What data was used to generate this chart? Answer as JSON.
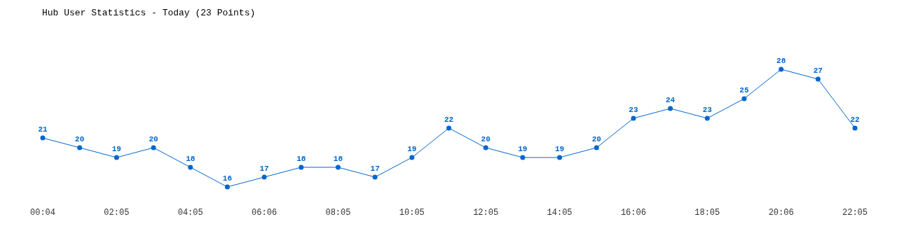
{
  "chart_data": {
    "type": "line",
    "title": "Hub User Statistics - Today (23 Points)",
    "categories": [
      "00:04",
      null,
      "02:05",
      null,
      "04:05",
      null,
      "06:06",
      null,
      "08:05",
      null,
      "10:05",
      null,
      "12:05",
      null,
      "14:05",
      null,
      "16:06",
      null,
      "18:05",
      null,
      "20:06",
      null,
      "22:05"
    ],
    "series": [
      {
        "color": "#0066cc",
        "values": [
          21,
          20,
          19,
          20,
          18,
          16,
          17,
          18,
          18,
          17,
          19,
          22,
          20,
          19,
          19,
          20,
          23,
          24,
          23,
          25,
          28,
          27,
          22
        ]
      }
    ],
    "data_labels": true,
    "marker": "circle"
  }
}
